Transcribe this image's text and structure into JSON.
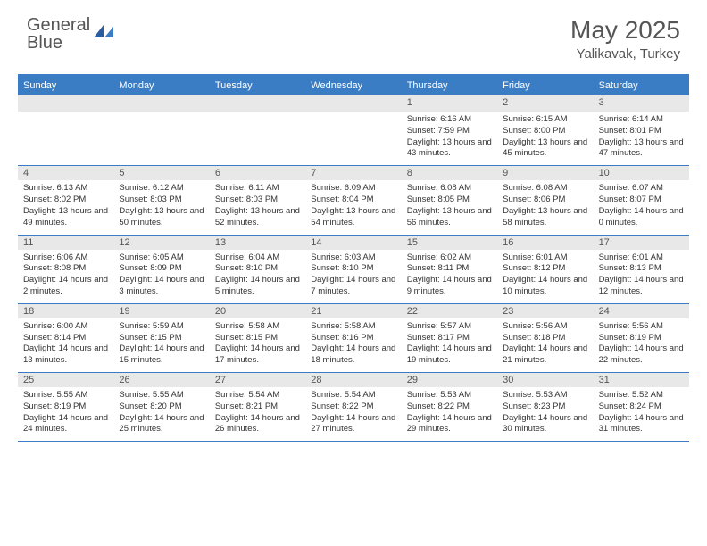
{
  "logo": {
    "line1": "General",
    "line2": "Blue"
  },
  "title": "May 2025",
  "location": "Yalikavak, Turkey",
  "colors": {
    "accent": "#3b7dc4",
    "daynum_bg": "#e8e8e8",
    "text": "#333333",
    "muted": "#555555",
    "background": "#ffffff"
  },
  "dow": [
    "Sunday",
    "Monday",
    "Tuesday",
    "Wednesday",
    "Thursday",
    "Friday",
    "Saturday"
  ],
  "weeks": [
    [
      null,
      null,
      null,
      null,
      {
        "n": "1",
        "sr": "6:16 AM",
        "ss": "7:59 PM",
        "dl": "13 hours and 43 minutes."
      },
      {
        "n": "2",
        "sr": "6:15 AM",
        "ss": "8:00 PM",
        "dl": "13 hours and 45 minutes."
      },
      {
        "n": "3",
        "sr": "6:14 AM",
        "ss": "8:01 PM",
        "dl": "13 hours and 47 minutes."
      }
    ],
    [
      {
        "n": "4",
        "sr": "6:13 AM",
        "ss": "8:02 PM",
        "dl": "13 hours and 49 minutes."
      },
      {
        "n": "5",
        "sr": "6:12 AM",
        "ss": "8:03 PM",
        "dl": "13 hours and 50 minutes."
      },
      {
        "n": "6",
        "sr": "6:11 AM",
        "ss": "8:03 PM",
        "dl": "13 hours and 52 minutes."
      },
      {
        "n": "7",
        "sr": "6:09 AM",
        "ss": "8:04 PM",
        "dl": "13 hours and 54 minutes."
      },
      {
        "n": "8",
        "sr": "6:08 AM",
        "ss": "8:05 PM",
        "dl": "13 hours and 56 minutes."
      },
      {
        "n": "9",
        "sr": "6:08 AM",
        "ss": "8:06 PM",
        "dl": "13 hours and 58 minutes."
      },
      {
        "n": "10",
        "sr": "6:07 AM",
        "ss": "8:07 PM",
        "dl": "14 hours and 0 minutes."
      }
    ],
    [
      {
        "n": "11",
        "sr": "6:06 AM",
        "ss": "8:08 PM",
        "dl": "14 hours and 2 minutes."
      },
      {
        "n": "12",
        "sr": "6:05 AM",
        "ss": "8:09 PM",
        "dl": "14 hours and 3 minutes."
      },
      {
        "n": "13",
        "sr": "6:04 AM",
        "ss": "8:10 PM",
        "dl": "14 hours and 5 minutes."
      },
      {
        "n": "14",
        "sr": "6:03 AM",
        "ss": "8:10 PM",
        "dl": "14 hours and 7 minutes."
      },
      {
        "n": "15",
        "sr": "6:02 AM",
        "ss": "8:11 PM",
        "dl": "14 hours and 9 minutes."
      },
      {
        "n": "16",
        "sr": "6:01 AM",
        "ss": "8:12 PM",
        "dl": "14 hours and 10 minutes."
      },
      {
        "n": "17",
        "sr": "6:01 AM",
        "ss": "8:13 PM",
        "dl": "14 hours and 12 minutes."
      }
    ],
    [
      {
        "n": "18",
        "sr": "6:00 AM",
        "ss": "8:14 PM",
        "dl": "14 hours and 13 minutes."
      },
      {
        "n": "19",
        "sr": "5:59 AM",
        "ss": "8:15 PM",
        "dl": "14 hours and 15 minutes."
      },
      {
        "n": "20",
        "sr": "5:58 AM",
        "ss": "8:15 PM",
        "dl": "14 hours and 17 minutes."
      },
      {
        "n": "21",
        "sr": "5:58 AM",
        "ss": "8:16 PM",
        "dl": "14 hours and 18 minutes."
      },
      {
        "n": "22",
        "sr": "5:57 AM",
        "ss": "8:17 PM",
        "dl": "14 hours and 19 minutes."
      },
      {
        "n": "23",
        "sr": "5:56 AM",
        "ss": "8:18 PM",
        "dl": "14 hours and 21 minutes."
      },
      {
        "n": "24",
        "sr": "5:56 AM",
        "ss": "8:19 PM",
        "dl": "14 hours and 22 minutes."
      }
    ],
    [
      {
        "n": "25",
        "sr": "5:55 AM",
        "ss": "8:19 PM",
        "dl": "14 hours and 24 minutes."
      },
      {
        "n": "26",
        "sr": "5:55 AM",
        "ss": "8:20 PM",
        "dl": "14 hours and 25 minutes."
      },
      {
        "n": "27",
        "sr": "5:54 AM",
        "ss": "8:21 PM",
        "dl": "14 hours and 26 minutes."
      },
      {
        "n": "28",
        "sr": "5:54 AM",
        "ss": "8:22 PM",
        "dl": "14 hours and 27 minutes."
      },
      {
        "n": "29",
        "sr": "5:53 AM",
        "ss": "8:22 PM",
        "dl": "14 hours and 29 minutes."
      },
      {
        "n": "30",
        "sr": "5:53 AM",
        "ss": "8:23 PM",
        "dl": "14 hours and 30 minutes."
      },
      {
        "n": "31",
        "sr": "5:52 AM",
        "ss": "8:24 PM",
        "dl": "14 hours and 31 minutes."
      }
    ]
  ],
  "labels": {
    "sunrise": "Sunrise:",
    "sunset": "Sunset:",
    "daylight": "Daylight:"
  }
}
